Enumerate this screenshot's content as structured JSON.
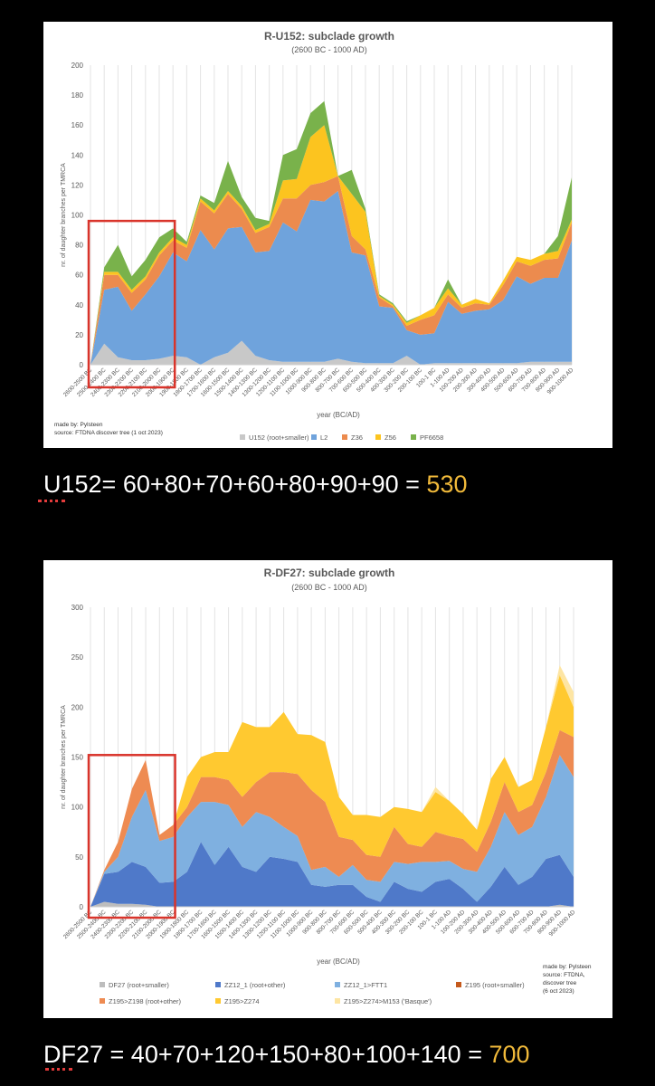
{
  "charts_meta": {
    "u152": {
      "made_by": "made by: Pylsteen",
      "source": "source:   FTDNA discover tree (1 oct 2023)"
    },
    "df27": {
      "made_by": [
        "made by: Pylsteen",
        "source: FTDNA,",
        "discover tree",
        "(6 oct 2023)"
      ]
    }
  },
  "chart_data": [
    {
      "type": "area",
      "stacked": true,
      "title": "R-U152: subclade growth",
      "subtitle": "(2600 BC - 1000 AD)",
      "xlabel": "year (BC/AD)",
      "ylabel": "nr. of daughter branches per TMRCA",
      "ylim": [
        0,
        200
      ],
      "yticks": [
        0,
        20,
        40,
        60,
        80,
        100,
        120,
        140,
        160,
        180,
        200
      ],
      "grid": "vertical",
      "legend_position": "bottom",
      "highlight_box": {
        "x_from": "2600-2500 BC",
        "x_to": "2000-1900 BC",
        "y_top": 96,
        "color": "#d9342b"
      },
      "categories": [
        "2600-2500 BC",
        "2500-2400 BC",
        "2400-2300 BC",
        "2300-2200 BC",
        "2200-2100 BC",
        "2100-2000 BC",
        "2000-1900 BC",
        "1900-1800 BC",
        "1800-1700 BC",
        "1700-1600 BC",
        "1600-1500 BC",
        "1500-1400 BC",
        "1400-1300 BC",
        "1300-1200 BC",
        "1200-1100 BC",
        "1100-1000 BC",
        "1000-900 BC",
        "900-800 BC",
        "800-700 BC",
        "700-600 BC",
        "600-500 BC",
        "500-400 BC",
        "400-300 BC",
        "300-200 BC",
        "200-100 BC",
        "100-1 BC",
        "1-100 AD",
        "100-200 AD",
        "200-300 AD",
        "300-400 AD",
        "400-500 AD",
        "500-600 AD",
        "600-700 AD",
        "700-800 AD",
        "800-900 AD",
        "900-1000 AD"
      ],
      "series": [
        {
          "name": "U152 (root+smaller)",
          "color": "#c8c8c8",
          "values": [
            0,
            14,
            5,
            3,
            3,
            4,
            6,
            5,
            0,
            5,
            8,
            16,
            6,
            3,
            2,
            2,
            2,
            2,
            4,
            2,
            1,
            1,
            1,
            6,
            0,
            1,
            1,
            1,
            1,
            1,
            1,
            1,
            2,
            2,
            2,
            2
          ]
        },
        {
          "name": "L2",
          "color": "#6fa3dc",
          "values": [
            0,
            36,
            47,
            33,
            44,
            55,
            69,
            64,
            90,
            72,
            83,
            76,
            69,
            73,
            93,
            87,
            108,
            107,
            112,
            73,
            72,
            38,
            37,
            17,
            20,
            20,
            41,
            33,
            35,
            36,
            42,
            58,
            52,
            56,
            56,
            81
          ]
        },
        {
          "name": "Z36",
          "color": "#ec8b4e",
          "values": [
            0,
            10,
            8,
            12,
            10,
            14,
            8,
            9,
            19,
            24,
            23,
            12,
            13,
            16,
            16,
            22,
            10,
            13,
            10,
            11,
            4,
            6,
            1,
            3,
            10,
            12,
            5,
            4,
            5,
            3,
            10,
            10,
            12,
            12,
            13,
            12
          ]
        },
        {
          "name": "Z56",
          "color": "#fcc41f",
          "values": [
            0,
            2,
            2,
            2,
            2,
            2,
            2,
            2,
            2,
            2,
            2,
            2,
            2,
            2,
            12,
            13,
            32,
            38,
            0,
            28,
            25,
            1,
            1,
            2,
            3,
            5,
            4,
            2,
            3,
            1,
            3,
            3,
            4,
            4,
            5,
            2
          ]
        },
        {
          "name": "PF6658",
          "color": "#79b24b",
          "values": [
            0,
            3,
            18,
            9,
            11,
            10,
            6,
            2,
            2,
            5,
            20,
            6,
            8,
            2,
            17,
            20,
            16,
            16,
            0,
            16,
            2,
            1,
            1,
            1,
            0,
            0,
            6,
            0,
            0,
            0,
            0,
            0,
            0,
            0,
            10,
            28
          ]
        }
      ]
    },
    {
      "type": "area",
      "stacked": true,
      "title": "R-DF27: subclade growth",
      "subtitle": "(2600 BC - 1000 AD)",
      "xlabel": "year (BC/AD)",
      "ylabel": "nr. of daughter branches per TMRCA",
      "ylim": [
        0,
        300
      ],
      "yticks": [
        0,
        50,
        100,
        150,
        200,
        250,
        300
      ],
      "grid": "vertical",
      "legend_position": "bottom",
      "highlight_box": {
        "x_from": "2600-2500 BC",
        "x_to": "2000-1900 BC",
        "y_top": 152,
        "color": "#d9342b"
      },
      "categories": [
        "2600-2500 BC",
        "2500-2400 BC",
        "2400-2300 BC",
        "2300-2200 BC",
        "2200-2100 BC",
        "2100-2000 BC",
        "2000-1900 BC",
        "1900-1800 BC",
        "1800-1700 BC",
        "1700-1600 BC",
        "1600-1500 BC",
        "1500-1400 BC",
        "1400-1300 BC",
        "1300-1200 BC",
        "1200-1100 BC",
        "1100-1000 BC",
        "1000-900 BC",
        "900-800 BC",
        "800-700 BC",
        "700-600 BC",
        "600-500 BC",
        "500-400 BC",
        "400-300 BC",
        "300-200 BC",
        "200-100 BC",
        "100-1 BC",
        "1-100 AD",
        "100-200 AD",
        "200-300 AD",
        "300-400 AD",
        "400-500 AD",
        "500-600 AD",
        "600-700 AD",
        "700-800 AD",
        "800-900 AD",
        "900-1000 AD"
      ],
      "series": [
        {
          "name": "DF27 (root+smaller)",
          "color": "#bdbdbd",
          "values": [
            0,
            5,
            3,
            3,
            2,
            0,
            0,
            0,
            0,
            0,
            0,
            0,
            0,
            0,
            0,
            0,
            0,
            0,
            0,
            0,
            0,
            0,
            0,
            0,
            0,
            0,
            0,
            0,
            0,
            0,
            0,
            0,
            0,
            0,
            2,
            0
          ]
        },
        {
          "name": "ZZ12_1 (root+other)",
          "color": "#4f79c9",
          "values": [
            0,
            28,
            32,
            42,
            38,
            24,
            25,
            35,
            65,
            42,
            60,
            40,
            35,
            50,
            48,
            45,
            22,
            20,
            22,
            22,
            10,
            5,
            25,
            18,
            15,
            25,
            28,
            18,
            5,
            20,
            40,
            22,
            30,
            48,
            50,
            30
          ]
        },
        {
          "name": "ZZ12_1>FTT1",
          "color": "#7fb0e0",
          "values": [
            0,
            2,
            15,
            45,
            77,
            42,
            45,
            55,
            40,
            63,
            42,
            40,
            60,
            40,
            32,
            26,
            15,
            20,
            8,
            20,
            17,
            20,
            20,
            25,
            30,
            20,
            18,
            20,
            30,
            40,
            55,
            50,
            50,
            62,
            100,
            100
          ]
        },
        {
          "name": "Z195 (root+smaller)",
          "color": "#c55a1c",
          "values": [
            0,
            0,
            0,
            0,
            0,
            0,
            0,
            0,
            0,
            0,
            0,
            0,
            0,
            0,
            0,
            0,
            0,
            0,
            0,
            0,
            0,
            0,
            0,
            0,
            0,
            0,
            0,
            0,
            0,
            0,
            0,
            0,
            0,
            0,
            0,
            0
          ]
        },
        {
          "name": "Z195>Z198 (root+other)",
          "color": "#ee8b52",
          "values": [
            0,
            2,
            15,
            28,
            30,
            6,
            12,
            10,
            25,
            25,
            25,
            30,
            30,
            45,
            55,
            62,
            80,
            65,
            40,
            25,
            25,
            25,
            35,
            20,
            15,
            30,
            25,
            30,
            20,
            25,
            30,
            23,
            22,
            25,
            25,
            40
          ]
        },
        {
          "name": "Z195>Z274",
          "color": "#ffc930",
          "values": [
            0,
            0,
            0,
            0,
            0,
            0,
            0,
            30,
            20,
            25,
            28,
            75,
            55,
            45,
            60,
            40,
            55,
            60,
            40,
            25,
            40,
            40,
            20,
            35,
            35,
            40,
            35,
            25,
            22,
            43,
            25,
            25,
            25,
            45,
            55,
            30
          ]
        },
        {
          "name": "Z195>Z274>M153 ('Basque')",
          "color": "#fde5a3",
          "values": [
            0,
            0,
            0,
            0,
            0,
            0,
            0,
            0,
            0,
            0,
            0,
            0,
            0,
            0,
            0,
            0,
            0,
            0,
            0,
            0,
            0,
            0,
            0,
            0,
            0,
            5,
            0,
            0,
            0,
            0,
            0,
            0,
            0,
            0,
            10,
            15
          ]
        }
      ]
    }
  ],
  "captions": [
    {
      "prefix": "U152",
      "equation": "= 60+80+70+60+80+90+90 = ",
      "result": "530"
    },
    {
      "prefix": "DF27",
      "equation": " = 40+70+120+150+80+100+140 = ",
      "result": "700"
    }
  ]
}
